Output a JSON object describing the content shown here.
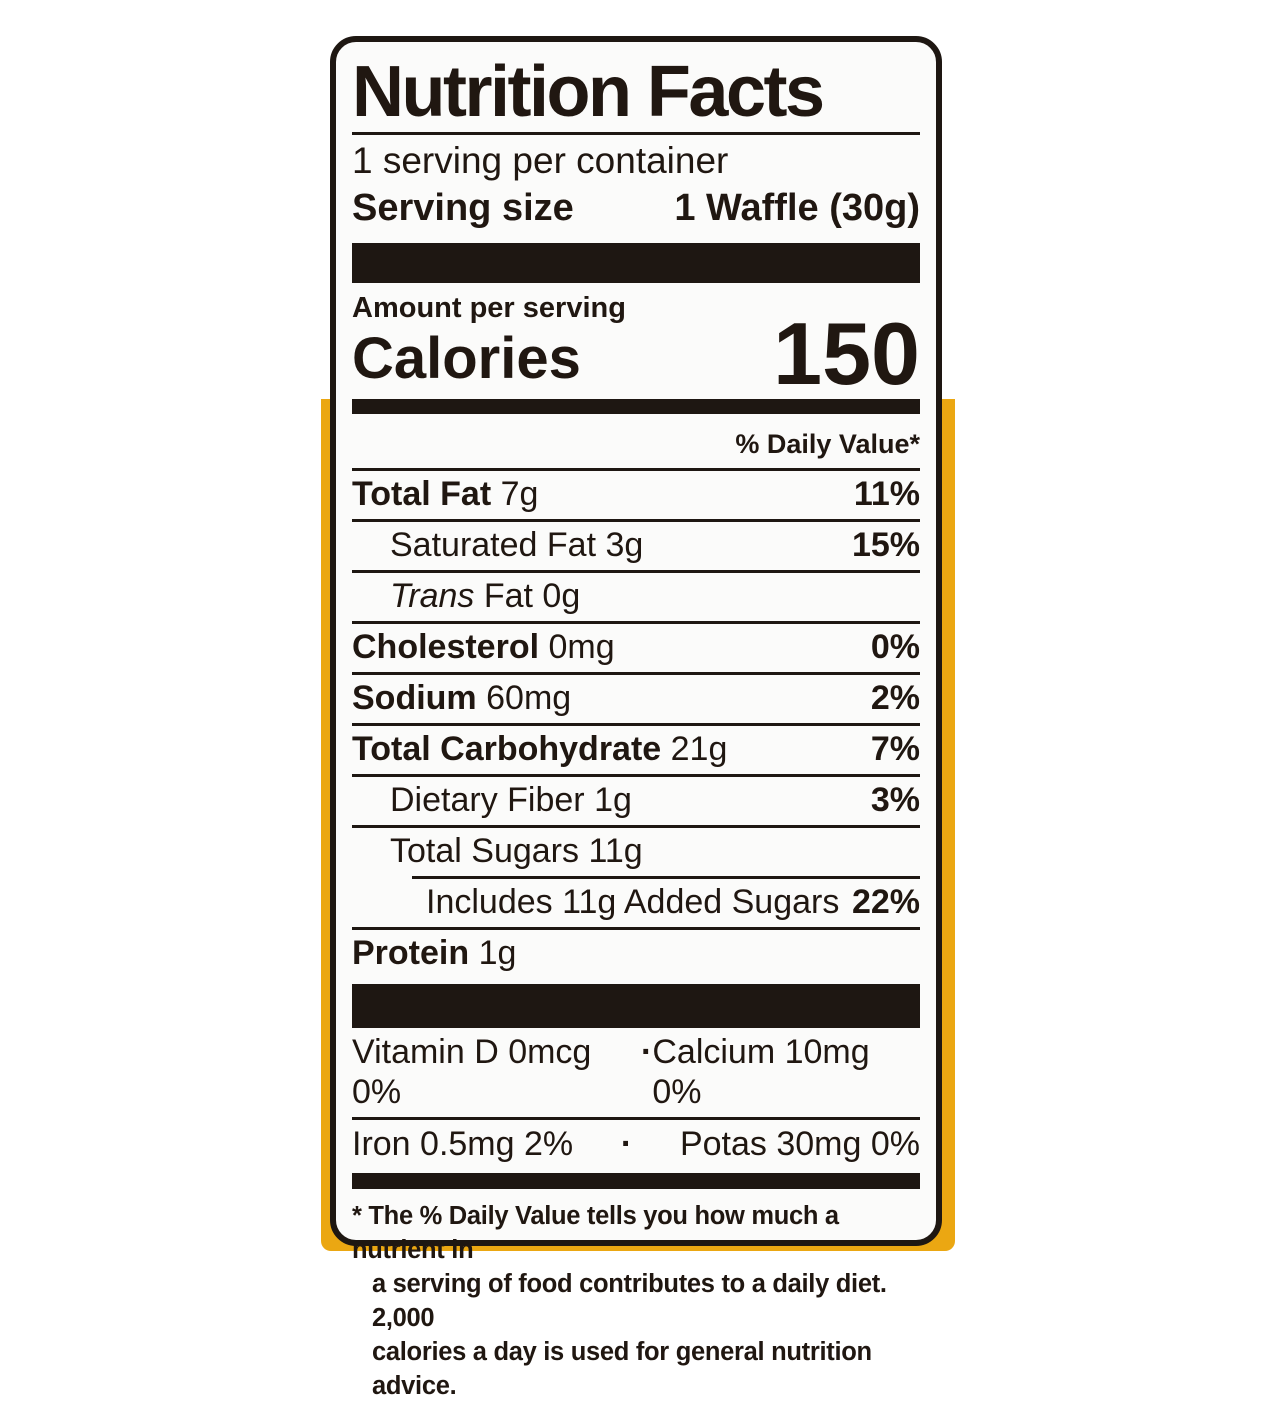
{
  "label": {
    "title": "Nutrition Facts",
    "servings_per_container": "1 serving per container",
    "serving_size_label": "Serving size",
    "serving_size_value": "1 Waffle (30g)",
    "amount_per_serving": "Amount per serving",
    "calories_label": "Calories",
    "calories_value": "150",
    "daily_value_header": "% Daily Value*",
    "rows": [
      {
        "name": "Total Fat",
        "amount": "7g",
        "dv": "11%"
      },
      {
        "name": "Saturated Fat",
        "amount": "3g",
        "dv": "15%"
      },
      {
        "name": "Trans",
        "name2": "Fat 0g",
        "amount": "",
        "dv": ""
      },
      {
        "name": "Cholesterol",
        "amount": "0mg",
        "dv": "0%"
      },
      {
        "name": "Sodium",
        "amount": "60mg",
        "dv": "2%"
      },
      {
        "name": "Total Carbohydrate",
        "amount": "21g",
        "dv": "7%"
      },
      {
        "name": "Dietary Fiber",
        "amount": "1g",
        "dv": "3%"
      },
      {
        "name": "Total Sugars",
        "amount": "11g",
        "dv": ""
      },
      {
        "name": "Includes 11g Added Sugars",
        "amount": "",
        "dv": "22%"
      },
      {
        "name": "Protein",
        "amount": "1g",
        "dv": ""
      }
    ],
    "micronutrients": [
      {
        "left": "Vitamin D 0mcg 0%",
        "sep": "·",
        "right": "Calcium 10mg 0%"
      },
      {
        "left": "Iron 0.5mg 2%",
        "sep": "·",
        "right": "Potas 30mg 0%"
      }
    ],
    "footnote_lines": [
      "* The % Daily Value tells you how much a nutrient in",
      "a serving of food contributes to a daily diet. 2,000",
      "calories a day is used for general nutrition advice."
    ]
  },
  "colors": {
    "ink": "#1e1712",
    "label_background": "#fbfbfa",
    "package_yellow": "#EBA712",
    "page_background": "#ffffff"
  }
}
